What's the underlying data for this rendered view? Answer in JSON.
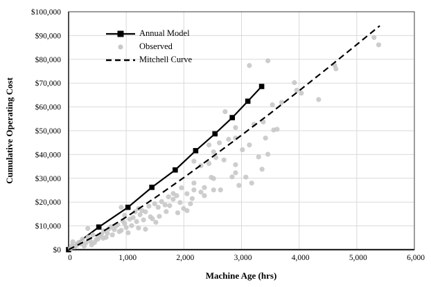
{
  "colors": {
    "annual_model": "#000000",
    "observed": "#c8c8c8",
    "mitchell_curve": "#000000",
    "gridline": "#d9d9d9",
    "plot_border": "#595959",
    "axis_line": "#262626",
    "text": "#000000"
  },
  "chart_data": {
    "type": "scatter",
    "title": "",
    "xlabel": "Machine Age (hrs)",
    "ylabel": "Cumulative Operating Cost",
    "xlim": [
      0,
      6000
    ],
    "ylim": [
      0,
      100000
    ],
    "grid": true,
    "legend_position": "inside-top-left",
    "x_ticks": [
      0,
      1000,
      2000,
      3000,
      4000,
      5000,
      6000
    ],
    "x_tick_labels": [
      "0",
      "1,000",
      "2,000",
      "3,000",
      "4,000",
      "5,000",
      "6,000"
    ],
    "y_ticks": [
      0,
      10000,
      20000,
      30000,
      40000,
      50000,
      60000,
      70000,
      80000,
      90000,
      100000
    ],
    "y_tick_labels": [
      "$0",
      "$10,000",
      "$20,000",
      "$30,000",
      "$40,000",
      "$50,000",
      "$60,000",
      "$70,000",
      "$80,000",
      "$90,000",
      "$100,000"
    ],
    "series": [
      {
        "name": "Annual Model",
        "kind": "line_with_square_markers",
        "color": "#000000",
        "points": [
          [
            0,
            0
          ],
          [
            525,
            9500
          ],
          [
            1030,
            17800
          ],
          [
            1445,
            26200
          ],
          [
            1850,
            33500
          ],
          [
            2205,
            41600
          ],
          [
            2540,
            48700
          ],
          [
            2840,
            55500
          ],
          [
            3110,
            62400
          ],
          [
            3350,
            68600
          ]
        ]
      },
      {
        "name": "Observed",
        "kind": "scatter",
        "color": "#c8c8c8",
        "points": [
          [
            30,
            500
          ],
          [
            60,
            1800
          ],
          [
            72,
            3300
          ],
          [
            100,
            1200
          ],
          [
            132,
            1600
          ],
          [
            150,
            2500
          ],
          [
            180,
            3100
          ],
          [
            210,
            2400
          ],
          [
            240,
            4400
          ],
          [
            270,
            1500
          ],
          [
            300,
            2800
          ],
          [
            333,
            8900
          ],
          [
            340,
            5200
          ],
          [
            381,
            3500
          ],
          [
            400,
            2000
          ],
          [
            421,
            6200
          ],
          [
            450,
            3000
          ],
          [
            481,
            4200
          ],
          [
            510,
            4500
          ],
          [
            541,
            5700
          ],
          [
            570,
            6500
          ],
          [
            600,
            4800
          ],
          [
            613,
            7900
          ],
          [
            650,
            5200
          ],
          [
            673,
            6900
          ],
          [
            700,
            8800
          ],
          [
            733,
            9600
          ],
          [
            760,
            6200
          ],
          [
            793,
            8400
          ],
          [
            820,
            9900
          ],
          [
            853,
            10500
          ],
          [
            880,
            7600
          ],
          [
            913,
            17800
          ],
          [
            913,
            8100
          ],
          [
            940,
            12100
          ],
          [
            973,
            14400
          ],
          [
            973,
            11000
          ],
          [
            1000,
            9300
          ],
          [
            1033,
            7100
          ],
          [
            1060,
            12800
          ],
          [
            1093,
            10100
          ],
          [
            1120,
            13500
          ],
          [
            1153,
            15900
          ],
          [
            1180,
            11800
          ],
          [
            1213,
            17300
          ],
          [
            1213,
            9100
          ],
          [
            1240,
            14700
          ],
          [
            1274,
            16400
          ],
          [
            1300,
            12500
          ],
          [
            1334,
            15900
          ],
          [
            1334,
            8600
          ],
          [
            1394,
            18300
          ],
          [
            1420,
            13800
          ],
          [
            1454,
            13000
          ],
          [
            1494,
            19300
          ],
          [
            1514,
            11500
          ],
          [
            1554,
            17800
          ],
          [
            1574,
            14000
          ],
          [
            1614,
            20200
          ],
          [
            1674,
            18800
          ],
          [
            1694,
            16000
          ],
          [
            1734,
            22200
          ],
          [
            1754,
            18500
          ],
          [
            1815,
            21200
          ],
          [
            1815,
            23600
          ],
          [
            1875,
            22700
          ],
          [
            1894,
            15500
          ],
          [
            1935,
            19800
          ],
          [
            1959,
            26000
          ],
          [
            1995,
            17300
          ],
          [
            2055,
            16400
          ],
          [
            2055,
            23500
          ],
          [
            2115,
            19300
          ],
          [
            2145,
            21500
          ],
          [
            2175,
            25100
          ],
          [
            2175,
            28000
          ],
          [
            2175,
            37200
          ],
          [
            2296,
            35300
          ],
          [
            2296,
            24200
          ],
          [
            2356,
            22700
          ],
          [
            2356,
            26100
          ],
          [
            2436,
            36200
          ],
          [
            2436,
            44000
          ],
          [
            2476,
            30400
          ],
          [
            2516,
            25100
          ],
          [
            2516,
            29900
          ],
          [
            2516,
            41100
          ],
          [
            2556,
            38700
          ],
          [
            2616,
            44900
          ],
          [
            2636,
            25100
          ],
          [
            2696,
            37700
          ],
          [
            2716,
            58000
          ],
          [
            2776,
            46400
          ],
          [
            2837,
            30600
          ],
          [
            2897,
            32300
          ],
          [
            2897,
            35700
          ],
          [
            2897,
            46900
          ],
          [
            2897,
            51300
          ],
          [
            2956,
            27000
          ],
          [
            3016,
            42000
          ],
          [
            3076,
            30500
          ],
          [
            3137,
            44000
          ],
          [
            3137,
            77400
          ],
          [
            3177,
            28000
          ],
          [
            3217,
            52700
          ],
          [
            3297,
            39000
          ],
          [
            3357,
            33800
          ],
          [
            3377,
            53700
          ],
          [
            3417,
            46900
          ],
          [
            3458,
            40100
          ],
          [
            3458,
            79400
          ],
          [
            3537,
            60900
          ],
          [
            3558,
            50300
          ],
          [
            3618,
            50600
          ],
          [
            3698,
            61900
          ],
          [
            3918,
            70200
          ],
          [
            3958,
            67000
          ],
          [
            4038,
            65800
          ],
          [
            4339,
            63100
          ],
          [
            4619,
            77400
          ],
          [
            4639,
            76000
          ],
          [
            5300,
            89200
          ],
          [
            5381,
            86100
          ]
        ]
      },
      {
        "name": "Mitchell Curve",
        "kind": "dashed_line",
        "color": "#000000",
        "points": [
          [
            0,
            0
          ],
          [
            500,
            6200
          ],
          [
            1000,
            13700
          ],
          [
            1500,
            21800
          ],
          [
            2000,
            30300
          ],
          [
            2500,
            39100
          ],
          [
            3000,
            48100
          ],
          [
            3500,
            57300
          ],
          [
            4000,
            66800
          ],
          [
            4500,
            76400
          ],
          [
            5000,
            86200
          ],
          [
            5400,
            94100
          ]
        ]
      }
    ]
  }
}
